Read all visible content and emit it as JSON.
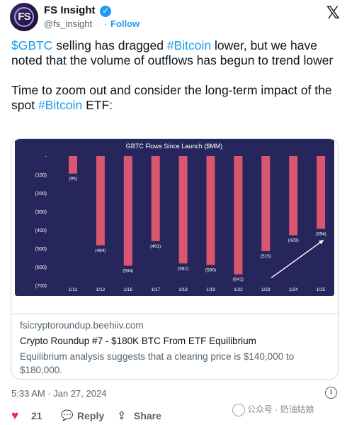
{
  "author": {
    "display_name": "FS Insight",
    "handle": "@fs_insight",
    "avatar_text": "FS",
    "follow_label": "Follow",
    "separator": "·"
  },
  "tweet": {
    "line1_parts": [
      {
        "text": "$GBTC",
        "link": true
      },
      {
        "text": " selling has dragged ",
        "link": false
      },
      {
        "text": "#Bitcoin",
        "link": true
      },
      {
        "text": " lower, but we have noted that the volume of outflows has begun to trend lower",
        "link": false
      }
    ],
    "line2_parts": [
      {
        "text": "Time to zoom out and consider the long-term impact of the spot ",
        "link": false
      },
      {
        "text": "#Bitcoin",
        "link": true
      },
      {
        "text": " ETF:",
        "link": false
      }
    ]
  },
  "card": {
    "domain": "fsicryptoroundup.beehiiv.com",
    "title": "Crypto Roundup #7 - $180K BTC From ETF Equilibrium",
    "description": "Equilibrium analysis suggests that a clearing price is $140,000 to $180,000."
  },
  "footer": {
    "timestamp": "5:33 AM · Jan 27, 2024",
    "info_glyph": "i",
    "like_count": "21",
    "reply_label": "Reply",
    "share_label": "Share",
    "watermark": "公众号 · 奶油姑娘"
  },
  "colors": {
    "chart_bg": "#26265c",
    "bar": "#d9566e",
    "link": "#1d9bf0",
    "heart": "#f91880"
  },
  "icons": {
    "x_logo": "𝕏",
    "verified": "✓",
    "heart": "♥",
    "reply": "💬",
    "share": "⇪"
  },
  "chart_data": {
    "type": "bar",
    "title": "GBTC Flows Since Launch ($MM)",
    "categories": [
      "1/11",
      "1/12",
      "1/16",
      "1/17",
      "1/18",
      "1/19",
      "1/22",
      "1/23",
      "1/24",
      "1/25"
    ],
    "values": [
      -95,
      -484,
      -594,
      -461,
      -582,
      -590,
      -641,
      -515,
      -429,
      -394
    ],
    "data_labels": [
      "(95)",
      "(484)",
      "(594)",
      "(461)",
      "(582)",
      "(590)",
      "(641)",
      "(515)",
      "(429)",
      "(394)"
    ],
    "y_ticks": [
      "-",
      "(100)",
      "(200)",
      "(300)",
      "(400)",
      "(500)",
      "(600)",
      "(700)"
    ],
    "ylim": [
      -700,
      0
    ],
    "grid": false,
    "annotation": "upward trend arrow from 1/23 to 1/25"
  }
}
